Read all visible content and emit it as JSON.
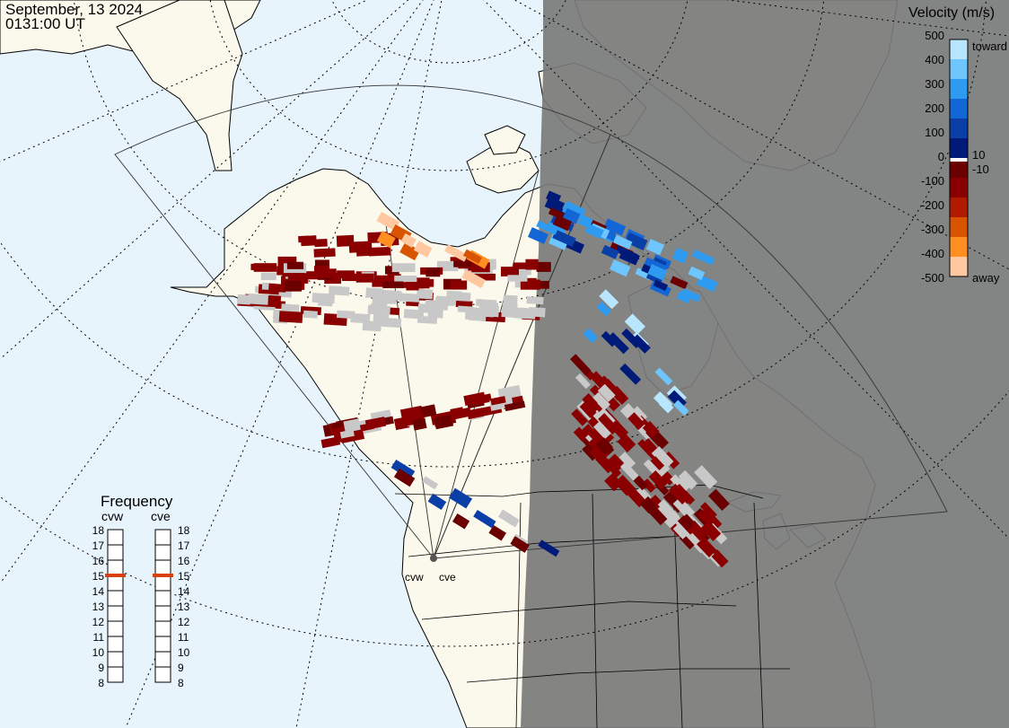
{
  "header": {
    "date": "September, 13 2024",
    "time": "0131:00 UT"
  },
  "colors": {
    "ocean": "#e8f4fc",
    "land": "#fbf9ec",
    "night": "#7a7a7a",
    "ground_scatter": "#c8c8c8"
  },
  "velocity_scale": {
    "title": "Velocity (m/s)",
    "ticks": [
      "500",
      "400",
      "300",
      "200",
      "100",
      "0",
      "-100",
      "-200",
      "-300",
      "-400",
      "-500"
    ],
    "inner_ticks": [
      "10",
      "-10"
    ],
    "toward_label": "toward",
    "away_label": "away",
    "colors": [
      "#b9e6ff",
      "#6fc6ff",
      "#2e9bf0",
      "#1266d6",
      "#0a3fa8",
      "#001a7a",
      "#6a0000",
      "#8a0000",
      "#b01a00",
      "#d95400",
      "#ff8f20",
      "#ffc8a0"
    ]
  },
  "frequency": {
    "title": "Frequency",
    "radars": [
      {
        "name": "cvw",
        "value_mhz": 15
      },
      {
        "name": "cve",
        "value_mhz": 15
      }
    ],
    "ticks": [
      "18",
      "17",
      "16",
      "15",
      "14",
      "13",
      "12",
      "11",
      "10",
      "9",
      "8"
    ]
  },
  "sites": [
    {
      "name": "cvw"
    },
    {
      "name": "cve"
    }
  ]
}
